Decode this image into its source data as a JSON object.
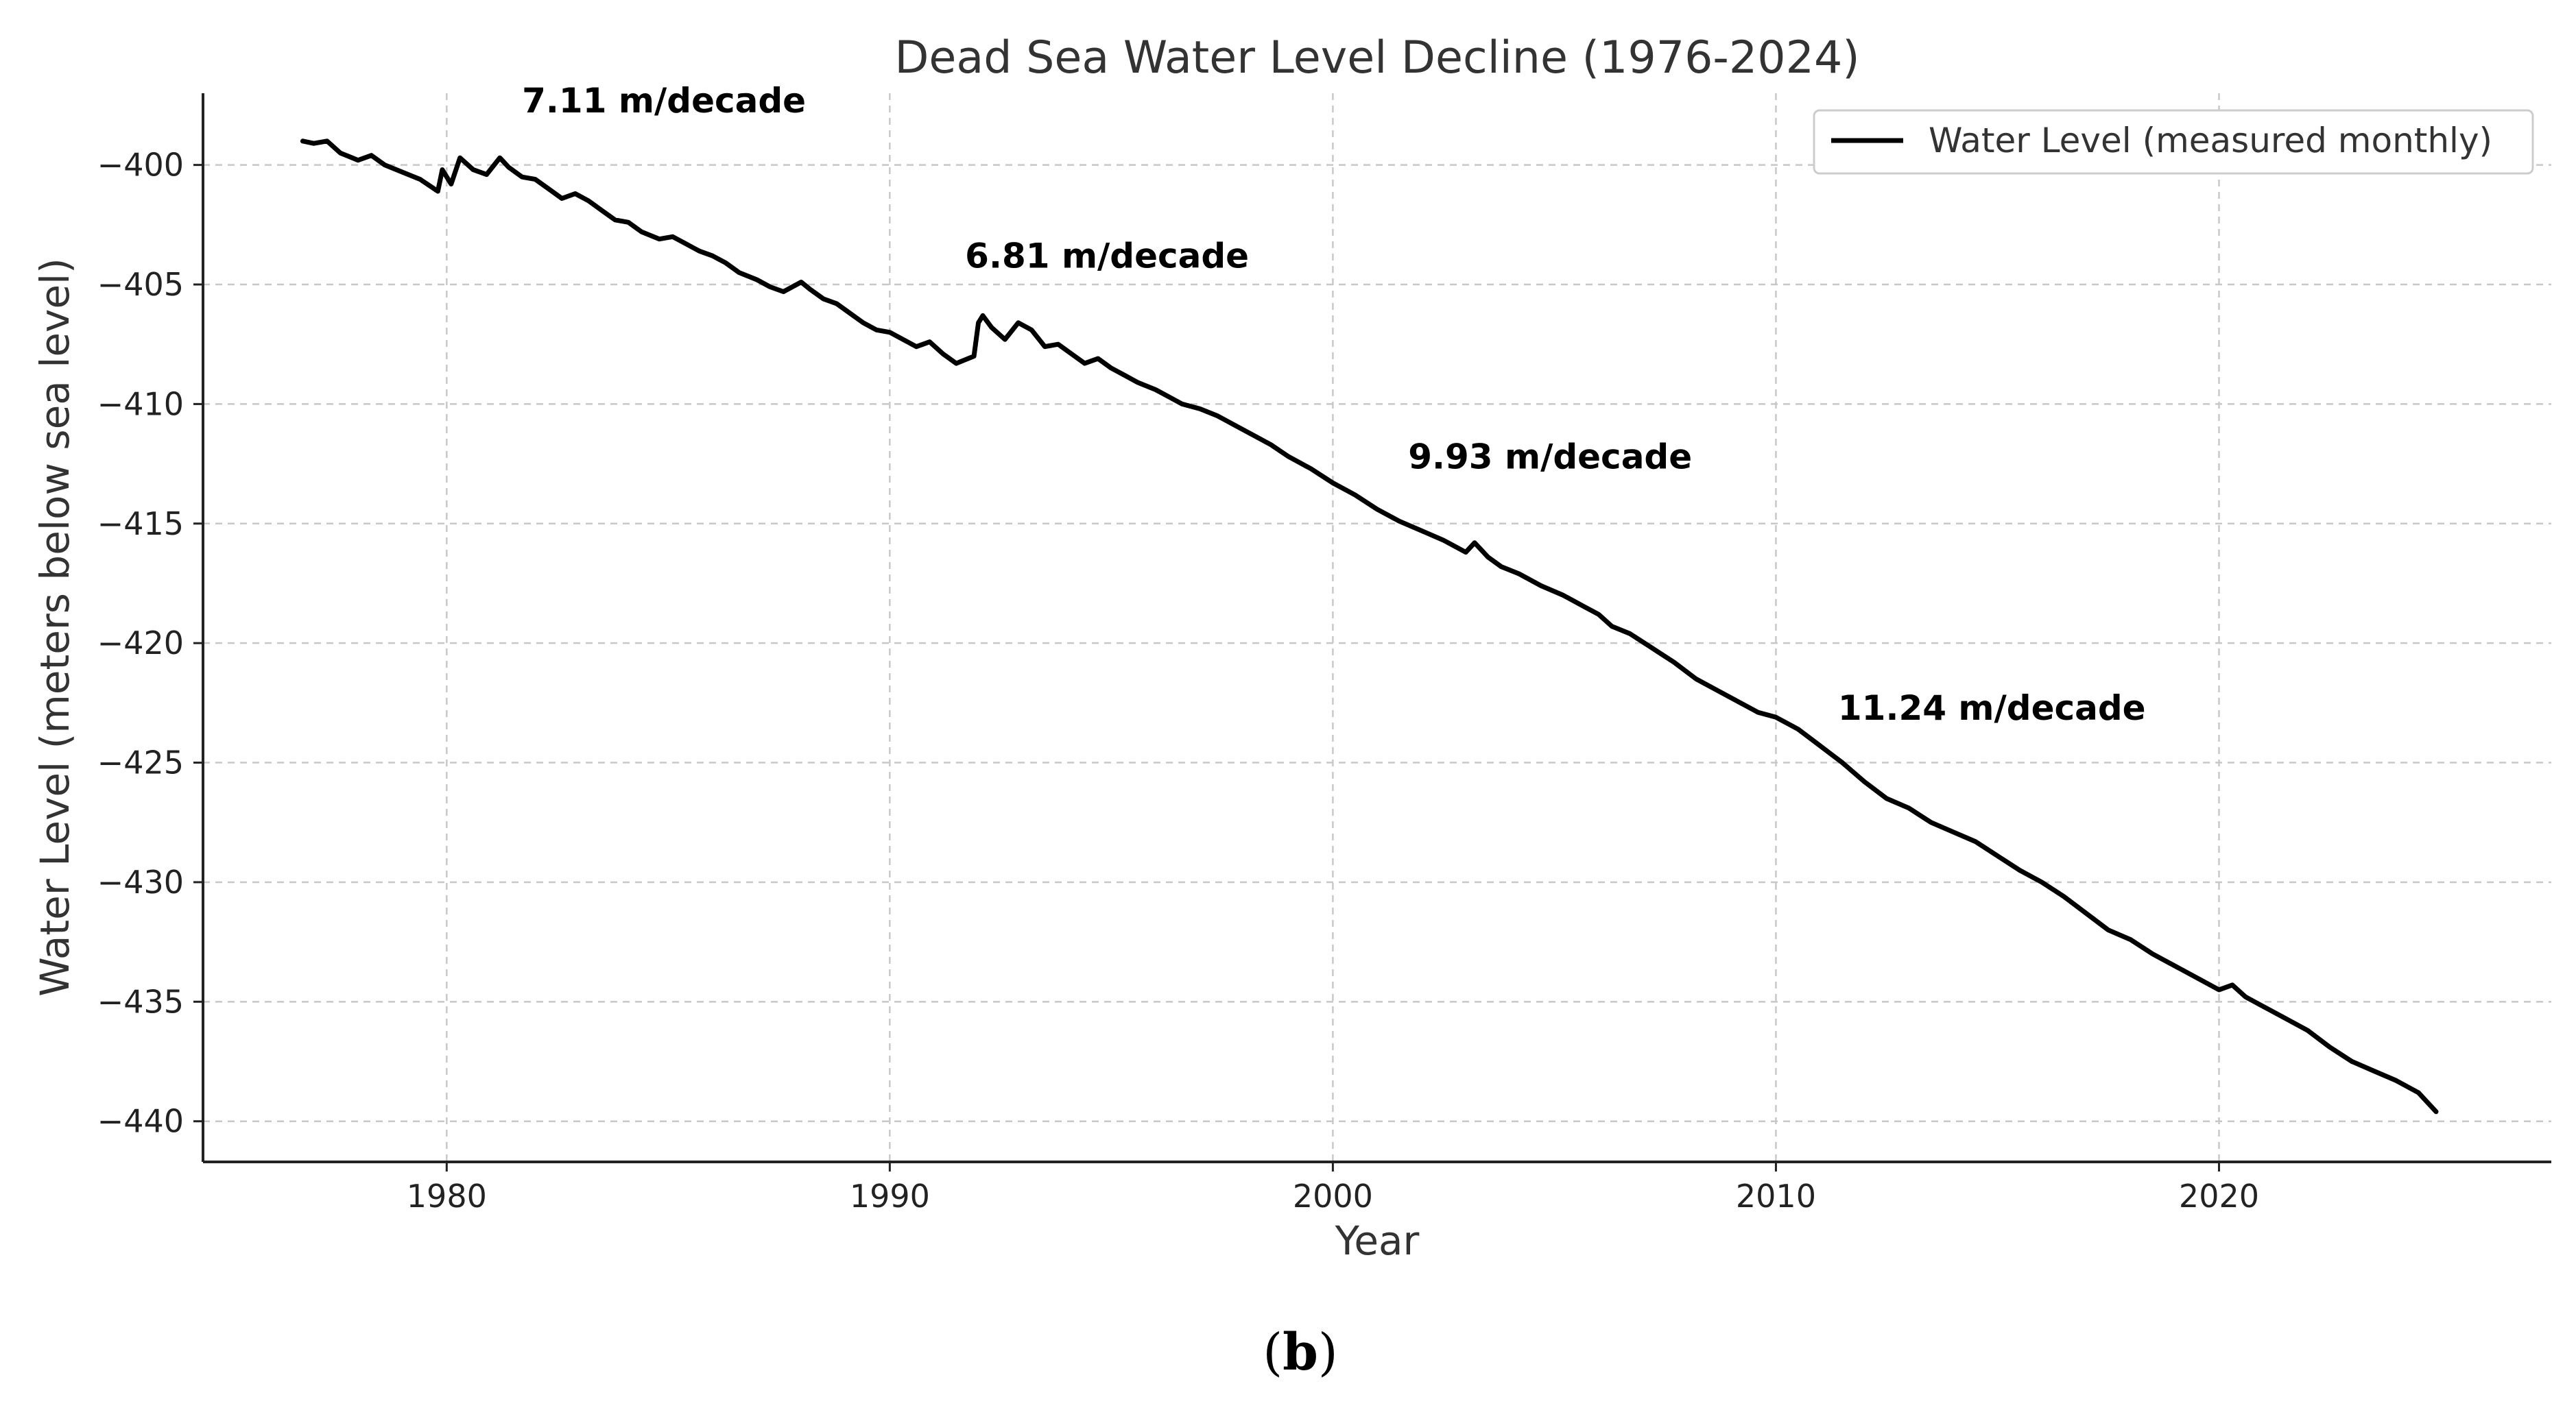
{
  "chart_data": {
    "type": "line",
    "title": "Dead Sea Water Level Decline (1976-2024)",
    "xlabel": "Year",
    "ylabel": "Water Level (meters below sea level)",
    "xlim": [
      1974.5,
      2027.5
    ],
    "ylim": [
      -441.7,
      -397.0
    ],
    "xticks": [
      1980,
      1990,
      2000,
      2010,
      2020
    ],
    "yticks": [
      -400,
      -405,
      -410,
      -415,
      -420,
      -425,
      -430,
      -435,
      -440
    ],
    "grid": true,
    "legend": {
      "position": "top-right",
      "entries": [
        "Water Level (measured monthly)"
      ]
    },
    "series": [
      {
        "name": "Water Level (measured monthly)",
        "color": "#000000",
        "x": [
          1976.75,
          1977.0,
          1977.3,
          1977.6,
          1978.0,
          1978.3,
          1978.6,
          1979.0,
          1979.4,
          1979.8,
          1979.9,
          1980.1,
          1980.3,
          1980.6,
          1980.9,
          1981.2,
          1981.4,
          1981.7,
          1982.0,
          1982.3,
          1982.6,
          1982.9,
          1983.2,
          1983.5,
          1983.8,
          1984.1,
          1984.4,
          1984.8,
          1985.1,
          1985.4,
          1985.7,
          1986.0,
          1986.3,
          1986.6,
          1987.0,
          1987.3,
          1987.6,
          1988.0,
          1988.2,
          1988.5,
          1988.8,
          1989.1,
          1989.4,
          1989.7,
          1990.0,
          1990.3,
          1990.6,
          1990.9,
          1991.2,
          1991.5,
          1991.9,
          1992.0,
          1992.1,
          1992.3,
          1992.6,
          1992.9,
          1993.2,
          1993.5,
          1993.8,
          1994.1,
          1994.4,
          1994.7,
          1995.0,
          1995.3,
          1995.6,
          1996.0,
          1996.3,
          1996.6,
          1997.0,
          1997.4,
          1997.8,
          1998.2,
          1998.6,
          1999.0,
          1999.5,
          2000.0,
          2000.5,
          2001.0,
          2001.5,
          2002.0,
          2002.5,
          2003.0,
          2003.2,
          2003.5,
          2003.8,
          2004.2,
          2004.7,
          2005.2,
          2005.7,
          2006.0,
          2006.3,
          2006.7,
          2007.2,
          2007.7,
          2008.2,
          2008.7,
          2009.2,
          2009.6,
          2010.0,
          2010.5,
          2011.0,
          2011.5,
          2012.0,
          2012.5,
          2013.0,
          2013.5,
          2014.0,
          2014.5,
          2015.0,
          2015.5,
          2016.0,
          2016.5,
          2017.0,
          2017.5,
          2018.0,
          2018.5,
          2019.0,
          2019.5,
          2020.0,
          2020.3,
          2020.6,
          2021.0,
          2021.5,
          2022.0,
          2022.5,
          2023.0,
          2023.5,
          2024.0,
          2024.5,
          2024.9
        ],
        "y": [
          -399.0,
          -399.1,
          -399.0,
          -399.5,
          -399.8,
          -399.6,
          -400.0,
          -400.3,
          -400.6,
          -401.1,
          -400.2,
          -400.8,
          -399.7,
          -400.2,
          -400.4,
          -399.7,
          -400.1,
          -400.5,
          -400.6,
          -401.0,
          -401.4,
          -401.2,
          -401.5,
          -401.9,
          -402.3,
          -402.4,
          -402.8,
          -403.1,
          -403.0,
          -403.3,
          -403.6,
          -403.8,
          -404.1,
          -404.5,
          -404.8,
          -405.1,
          -405.3,
          -404.9,
          -405.2,
          -405.6,
          -405.8,
          -406.2,
          -406.6,
          -406.9,
          -407.0,
          -407.3,
          -407.6,
          -407.4,
          -407.9,
          -408.3,
          -408.0,
          -406.6,
          -406.3,
          -406.8,
          -407.3,
          -406.6,
          -406.9,
          -407.6,
          -407.5,
          -407.9,
          -408.3,
          -408.1,
          -408.5,
          -408.8,
          -409.1,
          -409.4,
          -409.7,
          -410.0,
          -410.2,
          -410.5,
          -410.9,
          -411.3,
          -411.7,
          -412.2,
          -412.7,
          -413.3,
          -413.8,
          -414.4,
          -414.9,
          -415.3,
          -415.7,
          -416.2,
          -415.8,
          -416.4,
          -416.8,
          -417.1,
          -417.6,
          -418.0,
          -418.5,
          -418.8,
          -419.3,
          -419.6,
          -420.2,
          -420.8,
          -421.5,
          -422.0,
          -422.5,
          -422.9,
          -423.1,
          -423.6,
          -424.3,
          -425.0,
          -425.8,
          -426.5,
          -426.9,
          -427.5,
          -427.9,
          -428.3,
          -428.9,
          -429.5,
          -430.0,
          -430.6,
          -431.3,
          -432.0,
          -432.4,
          -433.0,
          -433.5,
          -434.0,
          -434.5,
          -434.3,
          -434.8,
          -435.2,
          -435.7,
          -436.2,
          -436.9,
          -437.5,
          -437.9,
          -438.3,
          -438.8,
          -439.6
        ]
      }
    ],
    "annotations": [
      {
        "text": "7.11 m/decade",
        "x": 1981.7,
        "y": -397.8
      },
      {
        "text": "6.81 m/decade",
        "x": 1991.7,
        "y": -404.3
      },
      {
        "text": "9.93 m/decade",
        "x": 2001.7,
        "y": -412.7
      },
      {
        "text": "11.24 m/decade",
        "x": 2011.4,
        "y": -423.2
      }
    ]
  },
  "caption": {
    "open": "(",
    "bold": "b",
    "close": ")"
  }
}
